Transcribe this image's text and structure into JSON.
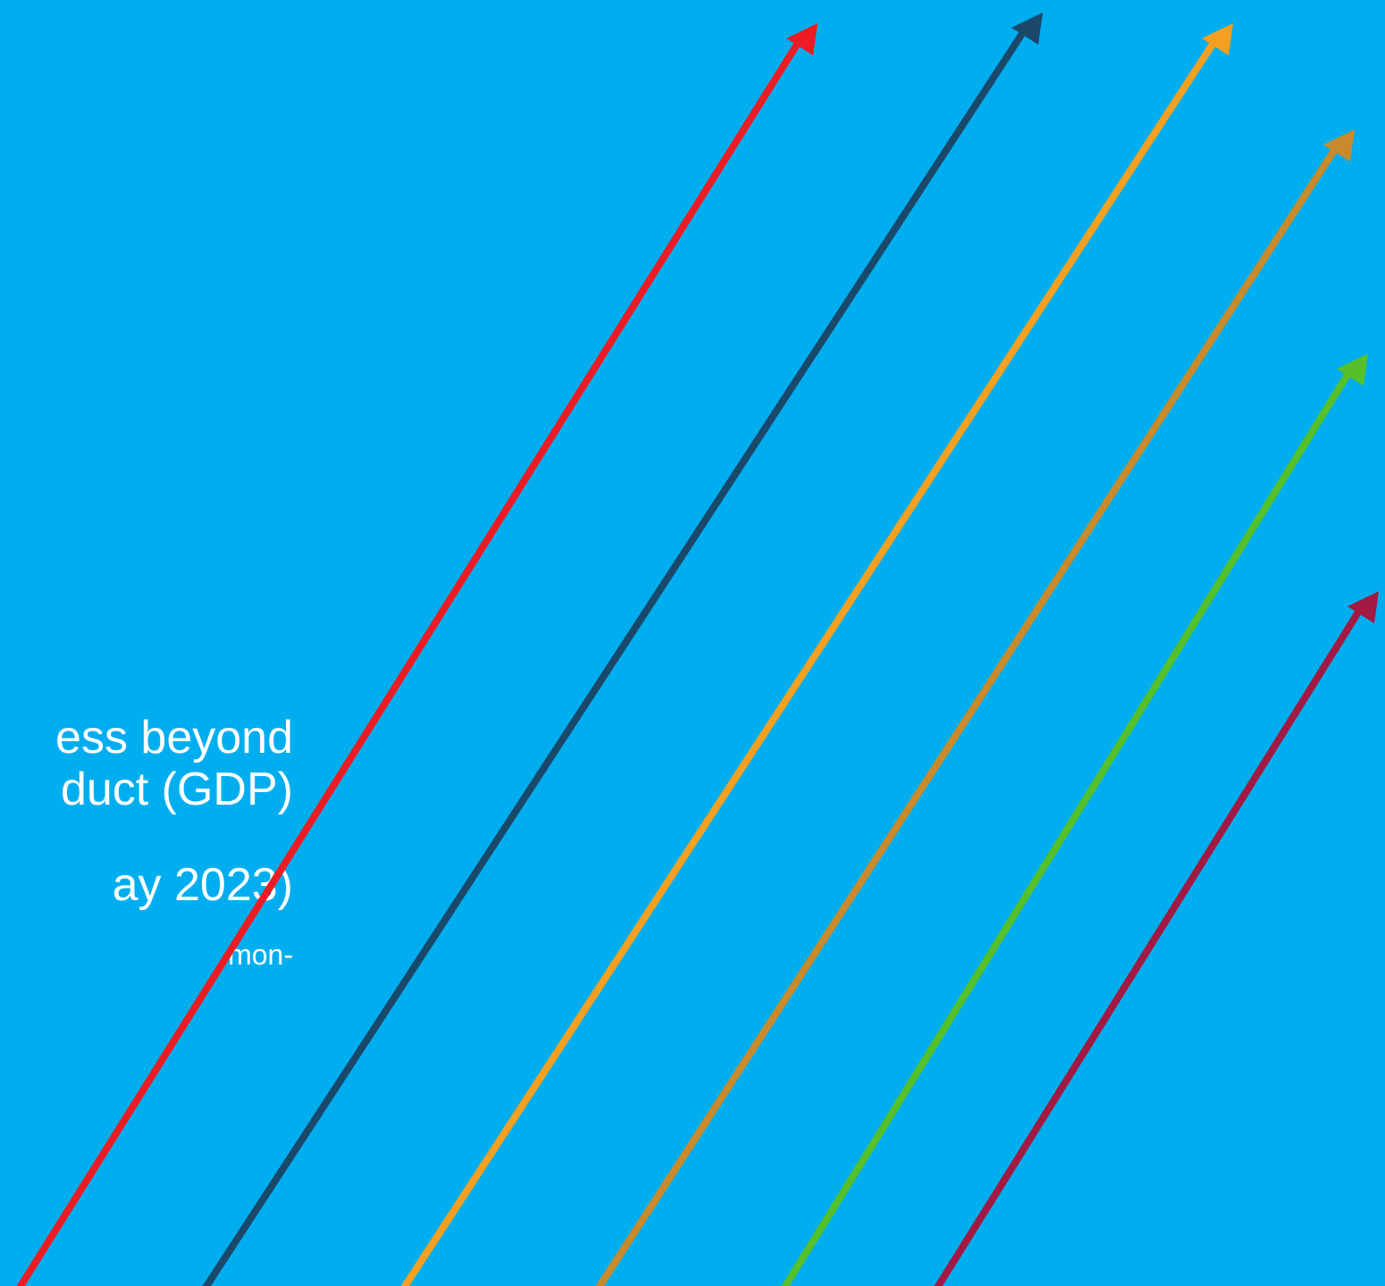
{
  "title": {
    "line1": "ess beyond",
    "line2": "duct (GDP)",
    "line3": "ay 2023)",
    "line4": "mon-"
  },
  "colors": {
    "background": "#00aeef",
    "text": "#ffffff",
    "arrows": [
      "#ed1c24",
      "#19486a",
      "#f6a021",
      "#c98a2b",
      "#56c02b",
      "#a21942"
    ]
  }
}
